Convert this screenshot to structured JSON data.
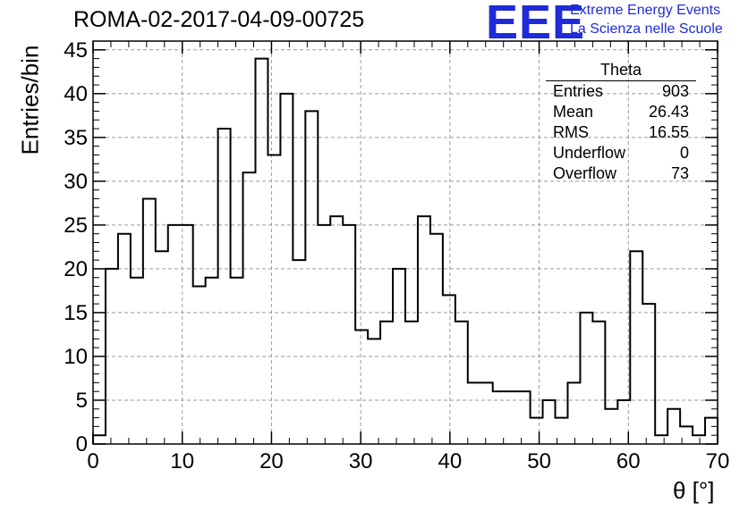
{
  "title": "ROMA-02-2017-04-09-00725",
  "logo": {
    "text": "EEE",
    "line1": "Extreme Energy Events",
    "line2": "La Scienza nelle Scuole",
    "color": "#1f2bd8"
  },
  "stats": {
    "title": "Theta",
    "rows": [
      {
        "label": "Entries",
        "value": "903"
      },
      {
        "label": "Mean",
        "value": "26.43"
      },
      {
        "label": "RMS",
        "value": "16.55"
      },
      {
        "label": "Underflow",
        "value": "0"
      },
      {
        "label": "Overflow",
        "value": "73"
      }
    ]
  },
  "chart_data": {
    "type": "bar",
    "style": "step-histogram",
    "title": "ROMA-02-2017-04-09-00725",
    "xlabel": "θ [°]",
    "ylabel": "Entries/bin",
    "xlim": [
      0,
      70
    ],
    "ylim": [
      0,
      46
    ],
    "grid": true,
    "bin_width": 1.4,
    "x_ticks": [
      0,
      10,
      20,
      30,
      40,
      50,
      60,
      70
    ],
    "y_ticks": [
      0,
      5,
      10,
      15,
      20,
      25,
      30,
      35,
      40,
      45
    ],
    "values": [
      1,
      20,
      24,
      19,
      28,
      22,
      25,
      25,
      18,
      19,
      36,
      19,
      31,
      44,
      33,
      40,
      21,
      38,
      25,
      26,
      25,
      13,
      12,
      14,
      20,
      14,
      26,
      24,
      17,
      14,
      7,
      7,
      6,
      6,
      6,
      3,
      5,
      3,
      7,
      15,
      14,
      4,
      5,
      22,
      16,
      1,
      4,
      2,
      1,
      3
    ]
  }
}
